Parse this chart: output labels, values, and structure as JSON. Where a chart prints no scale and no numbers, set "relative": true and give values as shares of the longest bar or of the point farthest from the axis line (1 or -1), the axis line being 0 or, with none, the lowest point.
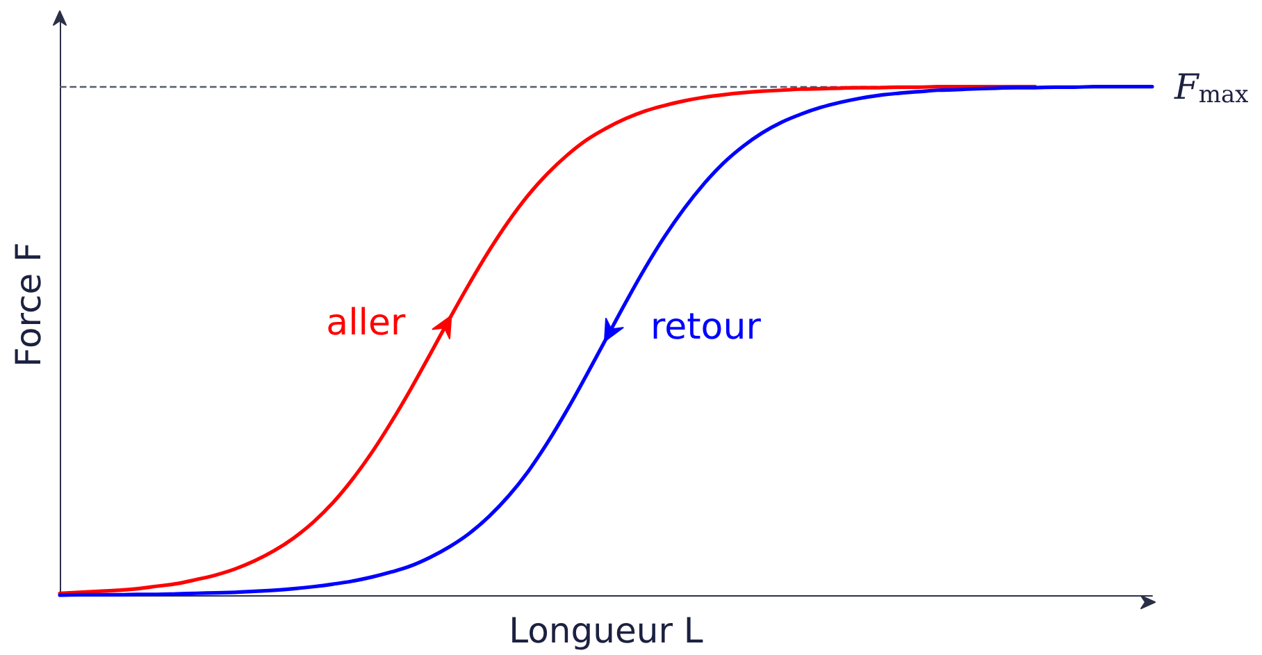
{
  "chart_data": {
    "type": "line",
    "xlabel": "Longueur L",
    "ylabel": "Force F",
    "relative": true,
    "categories": [
      null,
      null,
      null,
      null,
      null,
      null,
      null,
      null,
      null,
      null,
      null,
      null,
      null,
      null,
      null,
      null,
      null,
      null,
      null,
      null,
      null,
      null,
      null,
      null,
      null,
      null,
      null,
      null,
      null,
      null,
      null,
      null,
      null,
      null,
      null,
      null,
      null,
      null,
      null,
      null,
      null,
      null,
      null,
      null,
      null,
      null,
      null,
      null,
      null,
      null,
      null,
      null,
      null,
      null,
      null,
      null,
      null
    ],
    "series": [
      {
        "name": "aller",
        "color": "#ff0000",
        "values": [
          0.004,
          0.006,
          0.008,
          0.01,
          0.013,
          0.018,
          0.023,
          0.031,
          0.04,
          0.052,
          0.068,
          0.088,
          0.113,
          0.144,
          0.182,
          0.228,
          0.281,
          0.341,
          0.406,
          0.475,
          0.545,
          0.613,
          0.677,
          0.735,
          0.786,
          0.829,
          0.865,
          0.895,
          0.918,
          0.937,
          0.952,
          0.963,
          0.972,
          0.979,
          0.984,
          0.988,
          0.991,
          0.993,
          0.995,
          0.996,
          0.997,
          0.998,
          0.998,
          0.999,
          0.999,
          1,
          1,
          1,
          1,
          1,
          1,
          null,
          null,
          null,
          null,
          null,
          null
        ]
      },
      {
        "name": "retour",
        "color": "#0000ff",
        "values": [
          0,
          0.001,
          0.001,
          0.001,
          0.002,
          0.002,
          0.003,
          0.004,
          0.005,
          0.006,
          0.008,
          0.01,
          0.013,
          0.017,
          0.022,
          0.028,
          0.036,
          0.046,
          0.058,
          0.075,
          0.096,
          0.122,
          0.155,
          0.195,
          0.243,
          0.3,
          0.364,
          0.433,
          0.504,
          0.575,
          0.643,
          0.705,
          0.76,
          0.808,
          0.849,
          0.882,
          0.909,
          0.93,
          0.946,
          0.959,
          0.969,
          0.977,
          0.983,
          0.987,
          0.99,
          0.993,
          0.994,
          0.996,
          0.997,
          0.998,
          0.998,
          0.999,
          0.999,
          1,
          1,
          1,
          1
        ]
      }
    ],
    "ref_lines": [
      {
        "axis": "y",
        "value": 1,
        "label": "F$_{max}$",
        "color": "#555a6e",
        "line_style": "dashed"
      }
    ]
  }
}
